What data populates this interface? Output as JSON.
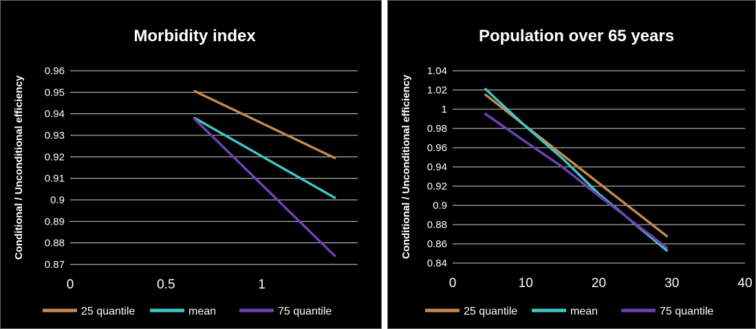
{
  "colors": {
    "background": "#000000",
    "text": "#ffffff",
    "grid": "#d9d9d9",
    "series_25": "#c58a4c",
    "series_mean": "#3fc6c6",
    "series_75": "#6e42b4"
  },
  "chart_data": [
    {
      "type": "line",
      "title": "Morbidity index",
      "xlabel": "",
      "ylabel": "Conditional / Unconditional efficiency",
      "xlim": [
        0,
        1.5
      ],
      "ylim": [
        0.87,
        0.96
      ],
      "x_ticks": [
        "0",
        "0.5",
        "1"
      ],
      "y_ticks": [
        "0.96",
        "0.95",
        "0.94",
        "0.93",
        "0.92",
        "0.91",
        "0.9",
        "0.89",
        "0.88",
        "0.87"
      ],
      "grid": true,
      "legend_position": "bottom",
      "series": [
        {
          "name": "25 quantile",
          "x": [
            0.65,
            1.38
          ],
          "y": [
            0.9505,
            0.9195
          ]
        },
        {
          "name": "mean",
          "x": [
            0.65,
            1.38
          ],
          "y": [
            0.938,
            0.901
          ]
        },
        {
          "name": "75 quantile",
          "x": [
            0.65,
            1.38
          ],
          "y": [
            0.9375,
            0.874
          ]
        }
      ]
    },
    {
      "type": "line",
      "title": "Population over 65 years",
      "xlabel": "",
      "ylabel": "Conditional / Unconditional efficiency",
      "xlim": [
        0,
        40
      ],
      "ylim": [
        0.84,
        1.04
      ],
      "x_ticks": [
        "0",
        "10",
        "20",
        "30",
        "40"
      ],
      "y_ticks": [
        "1.04",
        "1.02",
        "1",
        "0.98",
        "0.96",
        "0.94",
        "0.92",
        "0.9",
        "0.88",
        "0.86",
        "0.84"
      ],
      "grid": true,
      "legend_position": "bottom",
      "series": [
        {
          "name": "25 quantile",
          "x": [
            4.5,
            29.3
          ],
          "y": [
            1.015,
            0.868
          ]
        },
        {
          "name": "mean",
          "x": [
            4.5,
            10,
            15,
            20,
            29.3
          ],
          "y": [
            1.021,
            0.982,
            0.949,
            0.912,
            0.853
          ]
        },
        {
          "name": "75 quantile",
          "x": [
            4.5,
            10,
            15,
            20,
            29.3
          ],
          "y": [
            0.995,
            0.966,
            0.94,
            0.91,
            0.856
          ]
        }
      ]
    }
  ]
}
